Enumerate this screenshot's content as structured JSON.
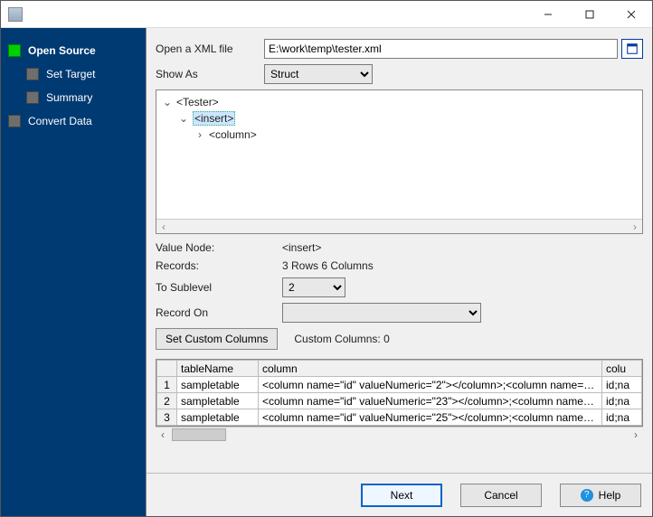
{
  "titlebar": {
    "title": ""
  },
  "sidebar": {
    "items": [
      {
        "label": "Open Source",
        "active": true,
        "sub": false
      },
      {
        "label": "Set Target",
        "active": false,
        "sub": true
      },
      {
        "label": "Summary",
        "active": false,
        "sub": true
      },
      {
        "label": "Convert Data",
        "active": false,
        "sub": false
      }
    ]
  },
  "form": {
    "open_label": "Open a XML file",
    "path_value": "E:\\work\\temp\\tester.xml",
    "show_as_label": "Show As",
    "show_as_value": "Struct",
    "value_node_label": "Value Node:",
    "value_node_value": "<insert>",
    "records_label": "Records:",
    "records_value": "3 Rows    6 Columns",
    "to_sublevel_label": "To Sublevel",
    "to_sublevel_value": "2",
    "record_on_label": "Record On",
    "record_on_value": "",
    "set_cols_btn": "Set Custom Columns",
    "custom_cols_label": "Custom Columns: 0"
  },
  "tree": {
    "n0": "<Tester>",
    "n1": "<insert>",
    "n2": "<column>"
  },
  "grid": {
    "columns": [
      "",
      "tableName",
      "column",
      "colu"
    ],
    "col_widths": [
      "22px",
      "90px",
      "auto",
      "40px"
    ],
    "rows": [
      [
        "1",
        "sampletable",
        "<column name=\"id\" valueNumeric=\"2\"></column>;<column name=\"n ...",
        "id;na"
      ],
      [
        "2",
        "sampletable",
        "<column name=\"id\" valueNumeric=\"23\"></column>;<column name=\" ...",
        "id;na"
      ],
      [
        "3",
        "sampletable",
        "<column name=\"id\" valueNumeric=\"25\"></column>;<column name=\" ...",
        "id;na"
      ]
    ]
  },
  "footer": {
    "next": "Next",
    "cancel": "Cancel",
    "help": "Help"
  },
  "colors": {
    "sidebar_bg": "#003a72",
    "active_step": "#00d000",
    "panel_bg": "#f0f0f0",
    "primary_border": "#0a63c9"
  }
}
